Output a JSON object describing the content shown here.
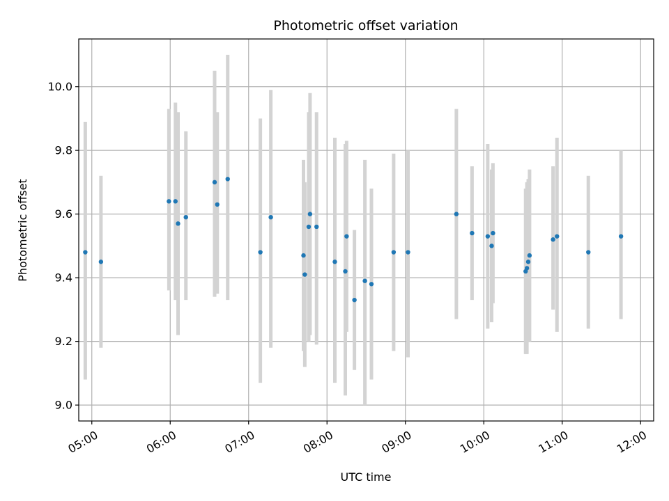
{
  "chart_data": {
    "type": "scatter",
    "title": "Photometric offset variation",
    "xlabel": "UTC time",
    "ylabel": "Photometric offset",
    "xlim": [
      "04:50",
      "12:10"
    ],
    "ylim": [
      8.95,
      10.15
    ],
    "x_ticks": [
      "05:00",
      "06:00",
      "07:00",
      "08:00",
      "09:00",
      "10:00",
      "11:00",
      "12:00"
    ],
    "y_ticks": [
      "9.0",
      "9.2",
      "9.4",
      "9.6",
      "9.8",
      "10.0"
    ],
    "grid": true,
    "colors": {
      "point": "#1f77b4",
      "errorbar": "#d3d3d3",
      "grid": "#b0b0b0"
    },
    "points": [
      {
        "time": "04:55",
        "y": 9.48,
        "low": 9.08,
        "high": 9.89
      },
      {
        "time": "05:07",
        "y": 9.45,
        "low": 9.18,
        "high": 9.72
      },
      {
        "time": "05:59",
        "y": 9.64,
        "low": 9.36,
        "high": 9.93
      },
      {
        "time": "06:04",
        "y": 9.64,
        "low": 9.33,
        "high": 9.95
      },
      {
        "time": "06:06",
        "y": 9.57,
        "low": 9.22,
        "high": 9.92
      },
      {
        "time": "06:12",
        "y": 9.59,
        "low": 9.33,
        "high": 9.86
      },
      {
        "time": "06:34",
        "y": 9.7,
        "low": 9.34,
        "high": 10.05
      },
      {
        "time": "06:36",
        "y": 9.63,
        "low": 9.35,
        "high": 9.92
      },
      {
        "time": "06:44",
        "y": 9.71,
        "low": 9.33,
        "high": 10.1
      },
      {
        "time": "07:09",
        "y": 9.48,
        "low": 9.07,
        "high": 9.9
      },
      {
        "time": "07:17",
        "y": 9.59,
        "low": 9.18,
        "high": 9.99
      },
      {
        "time": "07:42",
        "y": 9.47,
        "low": 9.17,
        "high": 9.77
      },
      {
        "time": "07:43",
        "y": 9.41,
        "low": 9.12,
        "high": 9.7
      },
      {
        "time": "07:46",
        "y": 9.56,
        "low": 9.2,
        "high": 9.92
      },
      {
        "time": "07:47",
        "y": 9.6,
        "low": 9.22,
        "high": 9.98
      },
      {
        "time": "07:52",
        "y": 9.56,
        "low": 9.19,
        "high": 9.92
      },
      {
        "time": "08:06",
        "y": 9.45,
        "low": 9.07,
        "high": 9.84
      },
      {
        "time": "08:14",
        "y": 9.42,
        "low": 9.03,
        "high": 9.82
      },
      {
        "time": "08:15",
        "y": 9.53,
        "low": 9.23,
        "high": 9.83
      },
      {
        "time": "08:21",
        "y": 9.33,
        "low": 9.11,
        "high": 9.55
      },
      {
        "time": "08:29",
        "y": 9.39,
        "low": 9.0,
        "high": 9.77
      },
      {
        "time": "08:34",
        "y": 9.38,
        "low": 9.08,
        "high": 9.68
      },
      {
        "time": "08:51",
        "y": 9.48,
        "low": 9.17,
        "high": 9.79
      },
      {
        "time": "09:02",
        "y": 9.48,
        "low": 9.15,
        "high": 9.8
      },
      {
        "time": "09:39",
        "y": 9.6,
        "low": 9.27,
        "high": 9.93
      },
      {
        "time": "09:51",
        "y": 9.54,
        "low": 9.33,
        "high": 9.75
      },
      {
        "time": "10:03",
        "y": 9.53,
        "low": 9.24,
        "high": 9.82
      },
      {
        "time": "10:06",
        "y": 9.5,
        "low": 9.26,
        "high": 9.74
      },
      {
        "time": "10:07",
        "y": 9.54,
        "low": 9.32,
        "high": 9.76
      },
      {
        "time": "10:32",
        "y": 9.42,
        "low": 9.16,
        "high": 9.68
      },
      {
        "time": "10:33",
        "y": 9.43,
        "low": 9.16,
        "high": 9.7
      },
      {
        "time": "10:34",
        "y": 9.45,
        "low": 9.2,
        "high": 9.71
      },
      {
        "time": "10:35",
        "y": 9.47,
        "low": 9.2,
        "high": 9.74
      },
      {
        "time": "10:53",
        "y": 9.52,
        "low": 9.3,
        "high": 9.75
      },
      {
        "time": "10:56",
        "y": 9.53,
        "low": 9.23,
        "high": 9.84
      },
      {
        "time": "11:20",
        "y": 9.48,
        "low": 9.24,
        "high": 9.72
      },
      {
        "time": "11:45",
        "y": 9.53,
        "low": 9.27,
        "high": 9.8
      }
    ]
  }
}
